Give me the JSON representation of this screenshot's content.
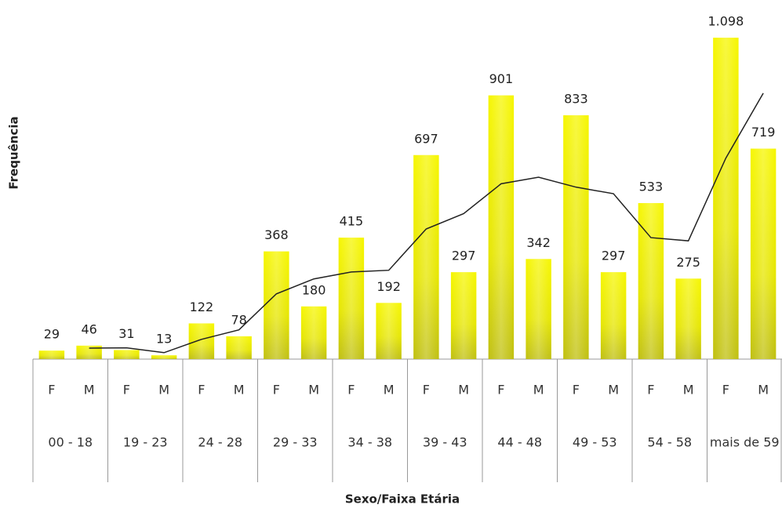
{
  "chart_data": {
    "type": "bar",
    "y_label": "Frequência",
    "x_label": "Sexo/Faixa Etária",
    "categories": [
      "F",
      "M",
      "F",
      "M",
      "F",
      "M",
      "F",
      "M",
      "F",
      "M",
      "F",
      "M",
      "F",
      "M",
      "F",
      "M",
      "F",
      "M",
      "F",
      "M"
    ],
    "groups": [
      "00 - 18",
      "19 - 23",
      "24 - 28",
      "29 - 33",
      "34 - 38",
      "39 - 43",
      "44 - 48",
      "49 - 53",
      "54 - 58",
      "mais de 59"
    ],
    "series": [
      {
        "type": "bar",
        "color": "#e8e800",
        "values": [
          29,
          46,
          31,
          13,
          122,
          78,
          368,
          180,
          415,
          192,
          697,
          297,
          901,
          342,
          833,
          297,
          533,
          275,
          1098,
          719
        ],
        "value_labels": [
          "29",
          "46",
          "31",
          "13",
          "122",
          "78",
          "368",
          "180",
          "415",
          "192",
          "697",
          "297",
          "901",
          "342",
          "833",
          "297",
          "533",
          "275",
          "1.098",
          "719"
        ]
      },
      {
        "type": "line",
        "color": "#222222",
        "values": [
          null,
          37.5,
          38.5,
          22,
          67.5,
          100,
          223,
          274,
          297.5,
          303.5,
          444.5,
          497,
          599,
          621.5,
          587.5,
          565,
          415,
          404,
          686.5,
          908.5
        ]
      }
    ],
    "ylim": [
      0,
      1200
    ]
  }
}
